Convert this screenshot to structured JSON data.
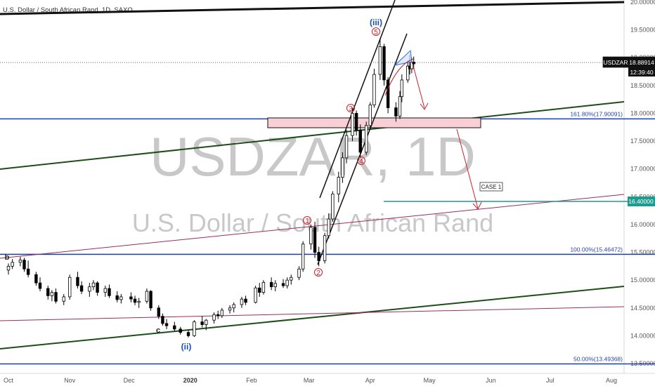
{
  "header": {
    "title": "U.S. Dollar / South African Rand, 1D, SAXO"
  },
  "watermark": {
    "symbol": "USDZAR, 1D",
    "name": "U.S. Dollar / South African Rand"
  },
  "price_tag": {
    "symbol": "USDZAR",
    "price": "18.88914",
    "countdown": "12:39:40"
  },
  "case_label": "CASE 1",
  "target_tag": "16.40000",
  "fib_levels": [
    {
      "label": "161.80%(17.90091)",
      "value": 17.90091
    },
    {
      "label": "100.00%(15.46472)",
      "value": 15.46472
    },
    {
      "label": "50.00%(13.49368)",
      "value": 13.49368
    }
  ],
  "wave_labels": {
    "w1": "1",
    "w2": "2",
    "w3": "3",
    "w4": "4",
    "w5": "5",
    "iii": "(iii)",
    "ii": "(ii)",
    "b": "b",
    "c": "c"
  },
  "colors": {
    "bull": "#ffffff",
    "bear": "#000000",
    "fib": "#1f3fa3",
    "target": "#1c9c8f",
    "zone_fill": "#f8cfd4",
    "wave": "#cc1f2d",
    "channel_green": "#1f4d1a",
    "channel_purple": "#9b2d5c"
  },
  "chart_data": {
    "type": "candlestick",
    "title": "U.S. Dollar / South African Rand, 1D, SAXO",
    "ylim": [
      13.4,
      20.0
    ],
    "yticks": [
      "20.00000",
      "19.50000",
      "19.00000",
      "18.50000",
      "18.00000",
      "17.50000",
      "17.00000",
      "16.50000",
      "16.00000",
      "15.50000",
      "15.00000",
      "14.50000",
      "14.00000",
      "13.50000"
    ],
    "xticks": [
      "Oct",
      "Nov",
      "Dec",
      "2020",
      "Feb",
      "Mar",
      "Apr",
      "May",
      "Jun",
      "Jul",
      "Aug"
    ],
    "current_price": 18.88914,
    "target": 16.4,
    "candles": [
      {
        "d": "2019-10-01",
        "o": 15.18,
        "h": 15.3,
        "l": 15.1,
        "c": 15.25
      },
      {
        "d": "2019-10-03",
        "o": 15.25,
        "h": 15.38,
        "l": 15.2,
        "c": 15.32
      },
      {
        "d": "2019-10-07",
        "o": 15.32,
        "h": 15.42,
        "l": 15.25,
        "c": 15.36
      },
      {
        "d": "2019-10-09",
        "o": 15.36,
        "h": 15.4,
        "l": 15.15,
        "c": 15.2
      },
      {
        "d": "2019-10-11",
        "o": 15.2,
        "h": 15.35,
        "l": 15.05,
        "c": 15.1
      },
      {
        "d": "2019-10-15",
        "o": 15.1,
        "h": 15.15,
        "l": 14.9,
        "c": 14.95
      },
      {
        "d": "2019-10-17",
        "o": 14.95,
        "h": 15.05,
        "l": 14.8,
        "c": 14.85
      },
      {
        "d": "2019-10-21",
        "o": 14.85,
        "h": 14.9,
        "l": 14.65,
        "c": 14.72
      },
      {
        "d": "2019-10-23",
        "o": 14.72,
        "h": 14.82,
        "l": 14.62,
        "c": 14.78
      },
      {
        "d": "2019-10-25",
        "o": 14.78,
        "h": 14.85,
        "l": 14.58,
        "c": 14.62
      },
      {
        "d": "2019-10-29",
        "o": 14.62,
        "h": 14.75,
        "l": 14.55,
        "c": 14.7
      },
      {
        "d": "2019-11-01",
        "o": 14.7,
        "h": 15.1,
        "l": 14.65,
        "c": 15.05
      },
      {
        "d": "2019-11-05",
        "o": 15.05,
        "h": 15.15,
        "l": 14.85,
        "c": 14.9
      },
      {
        "d": "2019-11-07",
        "o": 14.9,
        "h": 14.98,
        "l": 14.75,
        "c": 14.8
      },
      {
        "d": "2019-11-11",
        "o": 14.8,
        "h": 14.95,
        "l": 14.7,
        "c": 14.88
      },
      {
        "d": "2019-11-13",
        "o": 14.88,
        "h": 15.0,
        "l": 14.82,
        "c": 14.95
      },
      {
        "d": "2019-11-15",
        "o": 14.95,
        "h": 14.98,
        "l": 14.72,
        "c": 14.78
      },
      {
        "d": "2019-11-19",
        "o": 14.78,
        "h": 14.9,
        "l": 14.7,
        "c": 14.85
      },
      {
        "d": "2019-11-21",
        "o": 14.85,
        "h": 14.92,
        "l": 14.68,
        "c": 14.72
      },
      {
        "d": "2019-11-25",
        "o": 14.72,
        "h": 14.8,
        "l": 14.6,
        "c": 14.65
      },
      {
        "d": "2019-11-27",
        "o": 14.65,
        "h": 14.75,
        "l": 14.58,
        "c": 14.7
      },
      {
        "d": "2019-12-02",
        "o": 14.7,
        "h": 14.78,
        "l": 14.6,
        "c": 14.66
      },
      {
        "d": "2019-12-04",
        "o": 14.66,
        "h": 14.72,
        "l": 14.55,
        "c": 14.6
      },
      {
        "d": "2019-12-06",
        "o": 14.6,
        "h": 14.68,
        "l": 14.5,
        "c": 14.62
      },
      {
        "d": "2019-12-10",
        "o": 14.62,
        "h": 14.85,
        "l": 14.58,
        "c": 14.8
      },
      {
        "d": "2019-12-12",
        "o": 14.8,
        "h": 14.82,
        "l": 14.45,
        "c": 14.5
      },
      {
        "d": "2019-12-16",
        "o": 14.5,
        "h": 14.55,
        "l": 14.3,
        "c": 14.35
      },
      {
        "d": "2019-12-18",
        "o": 14.35,
        "h": 14.4,
        "l": 14.18,
        "c": 14.22
      },
      {
        "d": "2019-12-20",
        "o": 14.22,
        "h": 14.3,
        "l": 14.12,
        "c": 14.18
      },
      {
        "d": "2019-12-24",
        "o": 14.18,
        "h": 14.25,
        "l": 14.08,
        "c": 14.12
      },
      {
        "d": "2019-12-27",
        "o": 14.12,
        "h": 14.16,
        "l": 14.02,
        "c": 14.06
      },
      {
        "d": "2019-12-31",
        "o": 14.06,
        "h": 14.1,
        "l": 13.97,
        "c": 14.0
      },
      {
        "d": "2020-01-03",
        "o": 14.0,
        "h": 14.28,
        "l": 13.98,
        "c": 14.25
      },
      {
        "d": "2020-01-07",
        "o": 14.25,
        "h": 14.35,
        "l": 14.15,
        "c": 14.2
      },
      {
        "d": "2020-01-09",
        "o": 14.2,
        "h": 14.3,
        "l": 14.1,
        "c": 14.28
      },
      {
        "d": "2020-01-13",
        "o": 14.28,
        "h": 14.42,
        "l": 14.22,
        "c": 14.38
      },
      {
        "d": "2020-01-15",
        "o": 14.38,
        "h": 14.45,
        "l": 14.3,
        "c": 14.36
      },
      {
        "d": "2020-01-17",
        "o": 14.36,
        "h": 14.5,
        "l": 14.32,
        "c": 14.46
      },
      {
        "d": "2020-01-21",
        "o": 14.46,
        "h": 14.55,
        "l": 14.4,
        "c": 14.5
      },
      {
        "d": "2020-01-23",
        "o": 14.5,
        "h": 14.6,
        "l": 14.42,
        "c": 14.56
      },
      {
        "d": "2020-01-27",
        "o": 14.56,
        "h": 14.7,
        "l": 14.5,
        "c": 14.66
      },
      {
        "d": "2020-01-29",
        "o": 14.66,
        "h": 14.72,
        "l": 14.55,
        "c": 14.6
      },
      {
        "d": "2020-02-03",
        "o": 14.6,
        "h": 14.9,
        "l": 14.58,
        "c": 14.86
      },
      {
        "d": "2020-02-05",
        "o": 14.86,
        "h": 14.95,
        "l": 14.7,
        "c": 14.78
      },
      {
        "d": "2020-02-07",
        "o": 14.78,
        "h": 15.0,
        "l": 14.74,
        "c": 14.96
      },
      {
        "d": "2020-02-11",
        "o": 14.96,
        "h": 15.05,
        "l": 14.82,
        "c": 14.88
      },
      {
        "d": "2020-02-13",
        "o": 14.88,
        "h": 15.0,
        "l": 14.8,
        "c": 14.94
      },
      {
        "d": "2020-02-17",
        "o": 14.94,
        "h": 15.02,
        "l": 14.86,
        "c": 14.9
      },
      {
        "d": "2020-02-19",
        "o": 14.9,
        "h": 15.05,
        "l": 14.85,
        "c": 15.0
      },
      {
        "d": "2020-02-21",
        "o": 15.0,
        "h": 15.1,
        "l": 14.92,
        "c": 15.05
      },
      {
        "d": "2020-02-25",
        "o": 15.05,
        "h": 15.25,
        "l": 15.0,
        "c": 15.2
      },
      {
        "d": "2020-02-27",
        "o": 15.2,
        "h": 15.7,
        "l": 15.15,
        "c": 15.65
      },
      {
        "d": "2020-03-02",
        "o": 15.65,
        "h": 16.0,
        "l": 15.55,
        "c": 15.95
      },
      {
        "d": "2020-03-04",
        "o": 15.95,
        "h": 16.05,
        "l": 15.4,
        "c": 15.5
      },
      {
        "d": "2020-03-06",
        "o": 15.5,
        "h": 15.6,
        "l": 15.25,
        "c": 15.35
      },
      {
        "d": "2020-03-09",
        "o": 15.35,
        "h": 15.85,
        "l": 15.3,
        "c": 15.8
      },
      {
        "d": "2020-03-11",
        "o": 15.8,
        "h": 16.2,
        "l": 15.75,
        "c": 16.1
      },
      {
        "d": "2020-03-13",
        "o": 16.1,
        "h": 16.6,
        "l": 16.05,
        "c": 16.55
      },
      {
        "d": "2020-03-16",
        "o": 16.55,
        "h": 16.95,
        "l": 16.4,
        "c": 16.85
      },
      {
        "d": "2020-03-18",
        "o": 16.85,
        "h": 17.3,
        "l": 16.75,
        "c": 17.2
      },
      {
        "d": "2020-03-20",
        "o": 17.2,
        "h": 17.7,
        "l": 17.1,
        "c": 17.6
      },
      {
        "d": "2020-03-23",
        "o": 17.6,
        "h": 18.1,
        "l": 17.5,
        "c": 18.0
      },
      {
        "d": "2020-03-25",
        "o": 18.0,
        "h": 18.05,
        "l": 17.6,
        "c": 17.7
      },
      {
        "d": "2020-03-27",
        "o": 17.7,
        "h": 17.8,
        "l": 17.2,
        "c": 17.3
      },
      {
        "d": "2020-03-30",
        "o": 17.3,
        "h": 17.85,
        "l": 17.25,
        "c": 17.78
      },
      {
        "d": "2020-04-01",
        "o": 17.78,
        "h": 18.2,
        "l": 17.72,
        "c": 18.15
      },
      {
        "d": "2020-04-03",
        "o": 18.15,
        "h": 18.8,
        "l": 18.1,
        "c": 18.7
      },
      {
        "d": "2020-04-06",
        "o": 18.7,
        "h": 19.35,
        "l": 18.6,
        "c": 19.2
      },
      {
        "d": "2020-04-08",
        "o": 19.2,
        "h": 19.25,
        "l": 18.5,
        "c": 18.6
      },
      {
        "d": "2020-04-10",
        "o": 18.6,
        "h": 18.65,
        "l": 18.0,
        "c": 18.1
      },
      {
        "d": "2020-04-14",
        "o": 18.1,
        "h": 18.2,
        "l": 17.85,
        "c": 17.95
      },
      {
        "d": "2020-04-16",
        "o": 17.95,
        "h": 18.4,
        "l": 17.9,
        "c": 18.3
      },
      {
        "d": "2020-04-17",
        "o": 18.3,
        "h": 18.7,
        "l": 18.2,
        "c": 18.6
      },
      {
        "d": "2020-04-20",
        "o": 18.6,
        "h": 18.95,
        "l": 18.55,
        "c": 18.85
      },
      {
        "d": "2020-04-21",
        "o": 18.85,
        "h": 19.05,
        "l": 18.7,
        "c": 18.8
      },
      {
        "d": "2020-04-22",
        "o": 18.8,
        "h": 19.0,
        "l": 18.72,
        "c": 18.92
      },
      {
        "d": "2020-04-23",
        "o": 18.92,
        "h": 19.02,
        "l": 18.8,
        "c": 18.89
      }
    ]
  }
}
